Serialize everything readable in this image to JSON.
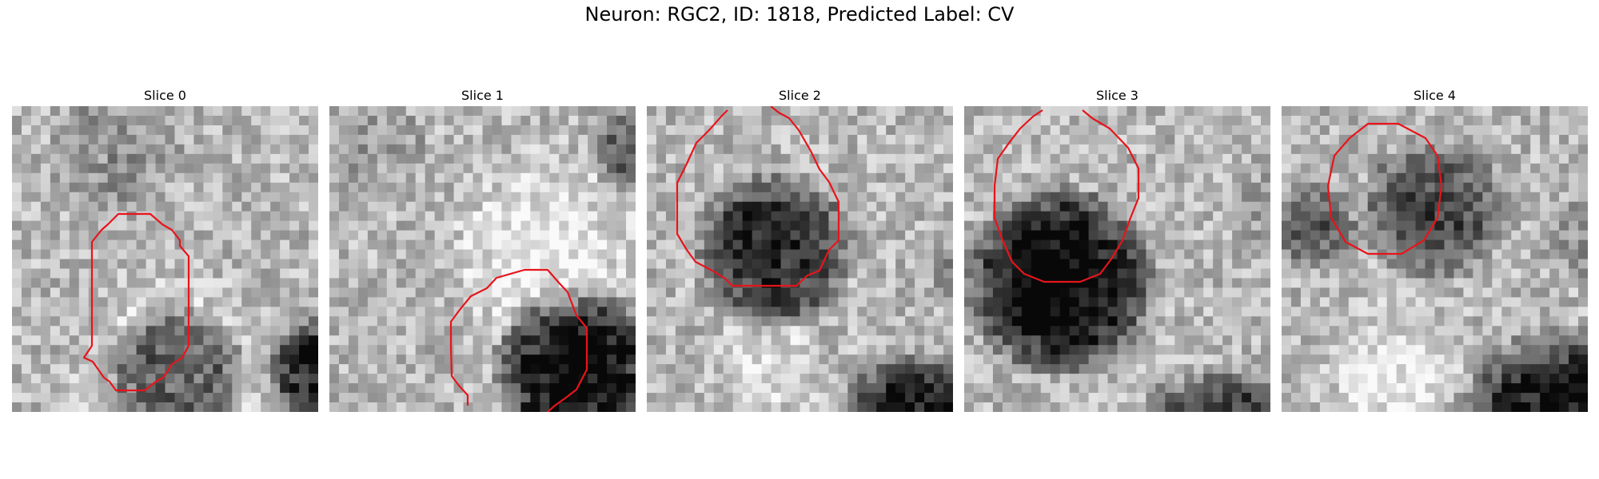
{
  "figure": {
    "title": "Neuron: RGC2, ID: 1818, Predicted Label: CV"
  },
  "panels": [
    {
      "label": "Slice 0"
    },
    {
      "label": "Slice 1"
    },
    {
      "label": "Slice 2"
    },
    {
      "label": "Slice 3"
    },
    {
      "label": "Slice 4"
    }
  ],
  "colors": {
    "contour": "#e8141b"
  }
}
